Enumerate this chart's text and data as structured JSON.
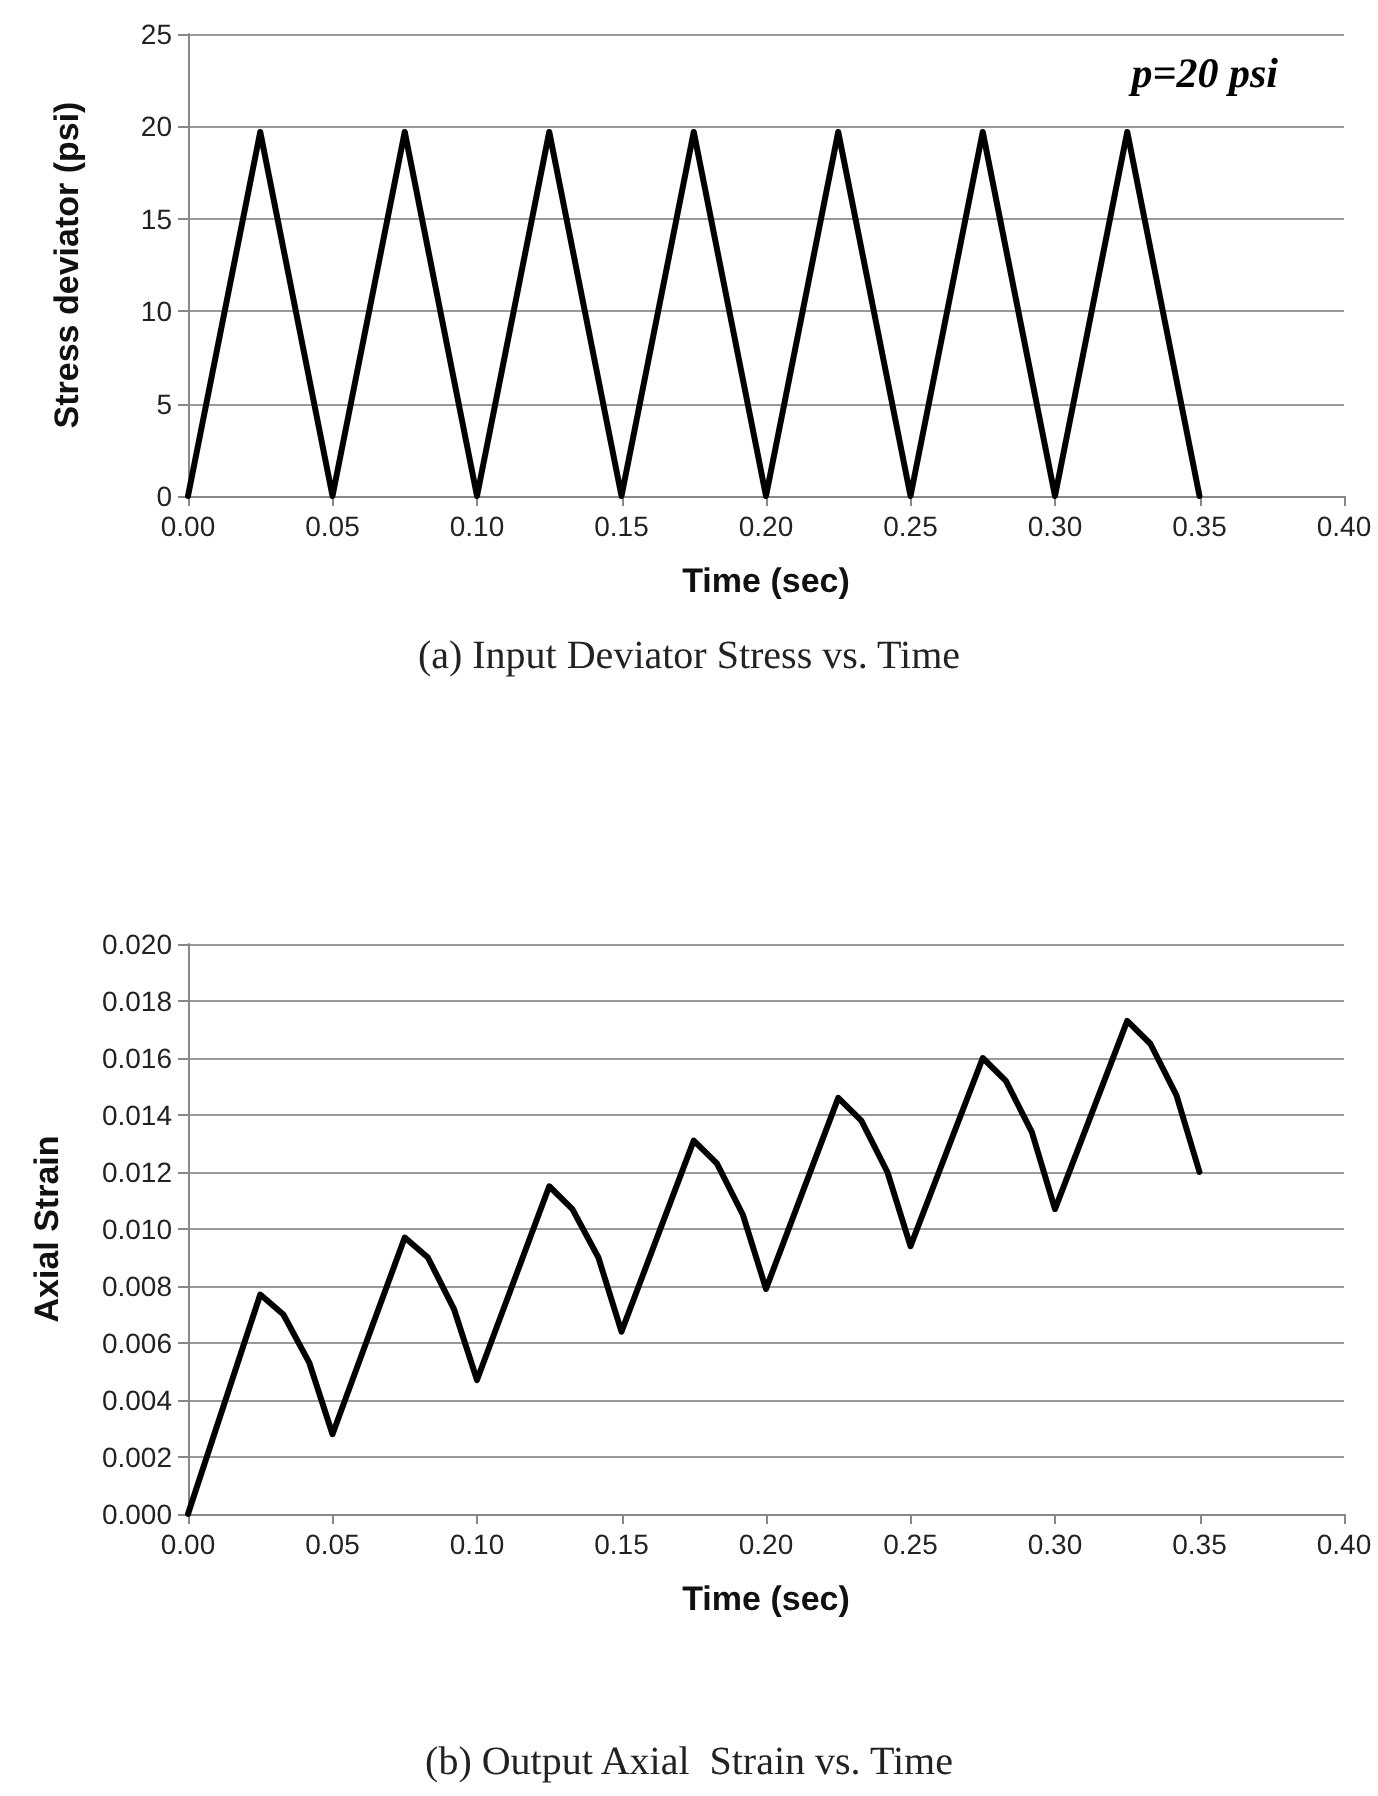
{
  "chart_data": [
    {
      "type": "line",
      "title": "(a) Input Deviator Stress vs. Time",
      "xlabel": "Time (sec)",
      "ylabel": "Stress deviator (psi)",
      "annotations": [
        "p=20 psi"
      ],
      "series": [
        {
          "color": "#000000",
          "x": [
            0,
            0.025,
            0.05,
            0.075,
            0.1,
            0.125,
            0.15,
            0.175,
            0.2,
            0.225,
            0.25,
            0.275,
            0.3,
            0.325,
            0.35
          ],
          "values": [
            0,
            19.7,
            0,
            19.7,
            0,
            19.7,
            0,
            19.7,
            0,
            19.7,
            0,
            19.7,
            0,
            19.7,
            0
          ]
        }
      ],
      "xlim": [
        0,
        0.4
      ],
      "xticks": [
        {
          "value": 0,
          "label": "0.00"
        },
        {
          "value": 0.05,
          "label": "0.05"
        },
        {
          "value": 0.1,
          "label": "0.10"
        },
        {
          "value": 0.15,
          "label": "0.15"
        },
        {
          "value": 0.2,
          "label": "0.20"
        },
        {
          "value": 0.25,
          "label": "0.25"
        },
        {
          "value": 0.3,
          "label": "0.30"
        },
        {
          "value": 0.35,
          "label": "0.35"
        },
        {
          "value": 0.4,
          "label": "0.40"
        }
      ],
      "ylim": [
        0,
        25
      ],
      "yticks": [
        0,
        5,
        10,
        15,
        20,
        25
      ],
      "grid": "y",
      "marker": "none",
      "line_style": "solid"
    },
    {
      "type": "line",
      "title": "(b) Output Axial  Strain vs. Time",
      "xlabel": "Time (sec)",
      "ylabel": "Axial Strain",
      "series": [
        {
          "color": "#000000",
          "x": [
            0,
            0.025,
            0.033,
            0.042,
            0.05,
            0.075,
            0.083,
            0.092,
            0.1,
            0.125,
            0.133,
            0.142,
            0.15,
            0.175,
            0.183,
            0.192,
            0.2,
            0.225,
            0.233,
            0.242,
            0.25,
            0.275,
            0.283,
            0.292,
            0.3,
            0.325,
            0.333,
            0.342,
            0.35
          ],
          "values": [
            0,
            0.0077,
            0.007,
            0.0053,
            0.0028,
            0.0097,
            0.009,
            0.0072,
            0.0047,
            0.0115,
            0.0107,
            0.009,
            0.0064,
            0.0131,
            0.0123,
            0.0105,
            0.0079,
            0.0146,
            0.0138,
            0.012,
            0.0094,
            0.016,
            0.0152,
            0.0134,
            0.0107,
            0.0173,
            0.0165,
            0.0147,
            0.012
          ]
        }
      ],
      "xlim": [
        0,
        0.4
      ],
      "xticks": [
        {
          "value": 0,
          "label": "0.00"
        },
        {
          "value": 0.05,
          "label": "0.05"
        },
        {
          "value": 0.1,
          "label": "0.10"
        },
        {
          "value": 0.15,
          "label": "0.15"
        },
        {
          "value": 0.2,
          "label": "0.20"
        },
        {
          "value": 0.25,
          "label": "0.25"
        },
        {
          "value": 0.3,
          "label": "0.30"
        },
        {
          "value": 0.35,
          "label": "0.35"
        },
        {
          "value": 0.4,
          "label": "0.40"
        }
      ],
      "ylim": [
        0,
        0.02
      ],
      "yticks": [
        {
          "value": 0,
          "label": "0.000"
        },
        {
          "value": 0.002,
          "label": "0.002"
        },
        {
          "value": 0.004,
          "label": "0.004"
        },
        {
          "value": 0.006,
          "label": "0.006"
        },
        {
          "value": 0.008,
          "label": "0.008"
        },
        {
          "value": 0.01,
          "label": "0.010"
        },
        {
          "value": 0.012,
          "label": "0.012"
        },
        {
          "value": 0.014,
          "label": "0.014"
        },
        {
          "value": 0.016,
          "label": "0.016"
        },
        {
          "value": 0.018,
          "label": "0.018"
        },
        {
          "value": 0.02,
          "label": "0.020"
        }
      ],
      "grid": "y",
      "marker": "none",
      "line_style": "solid"
    }
  ]
}
